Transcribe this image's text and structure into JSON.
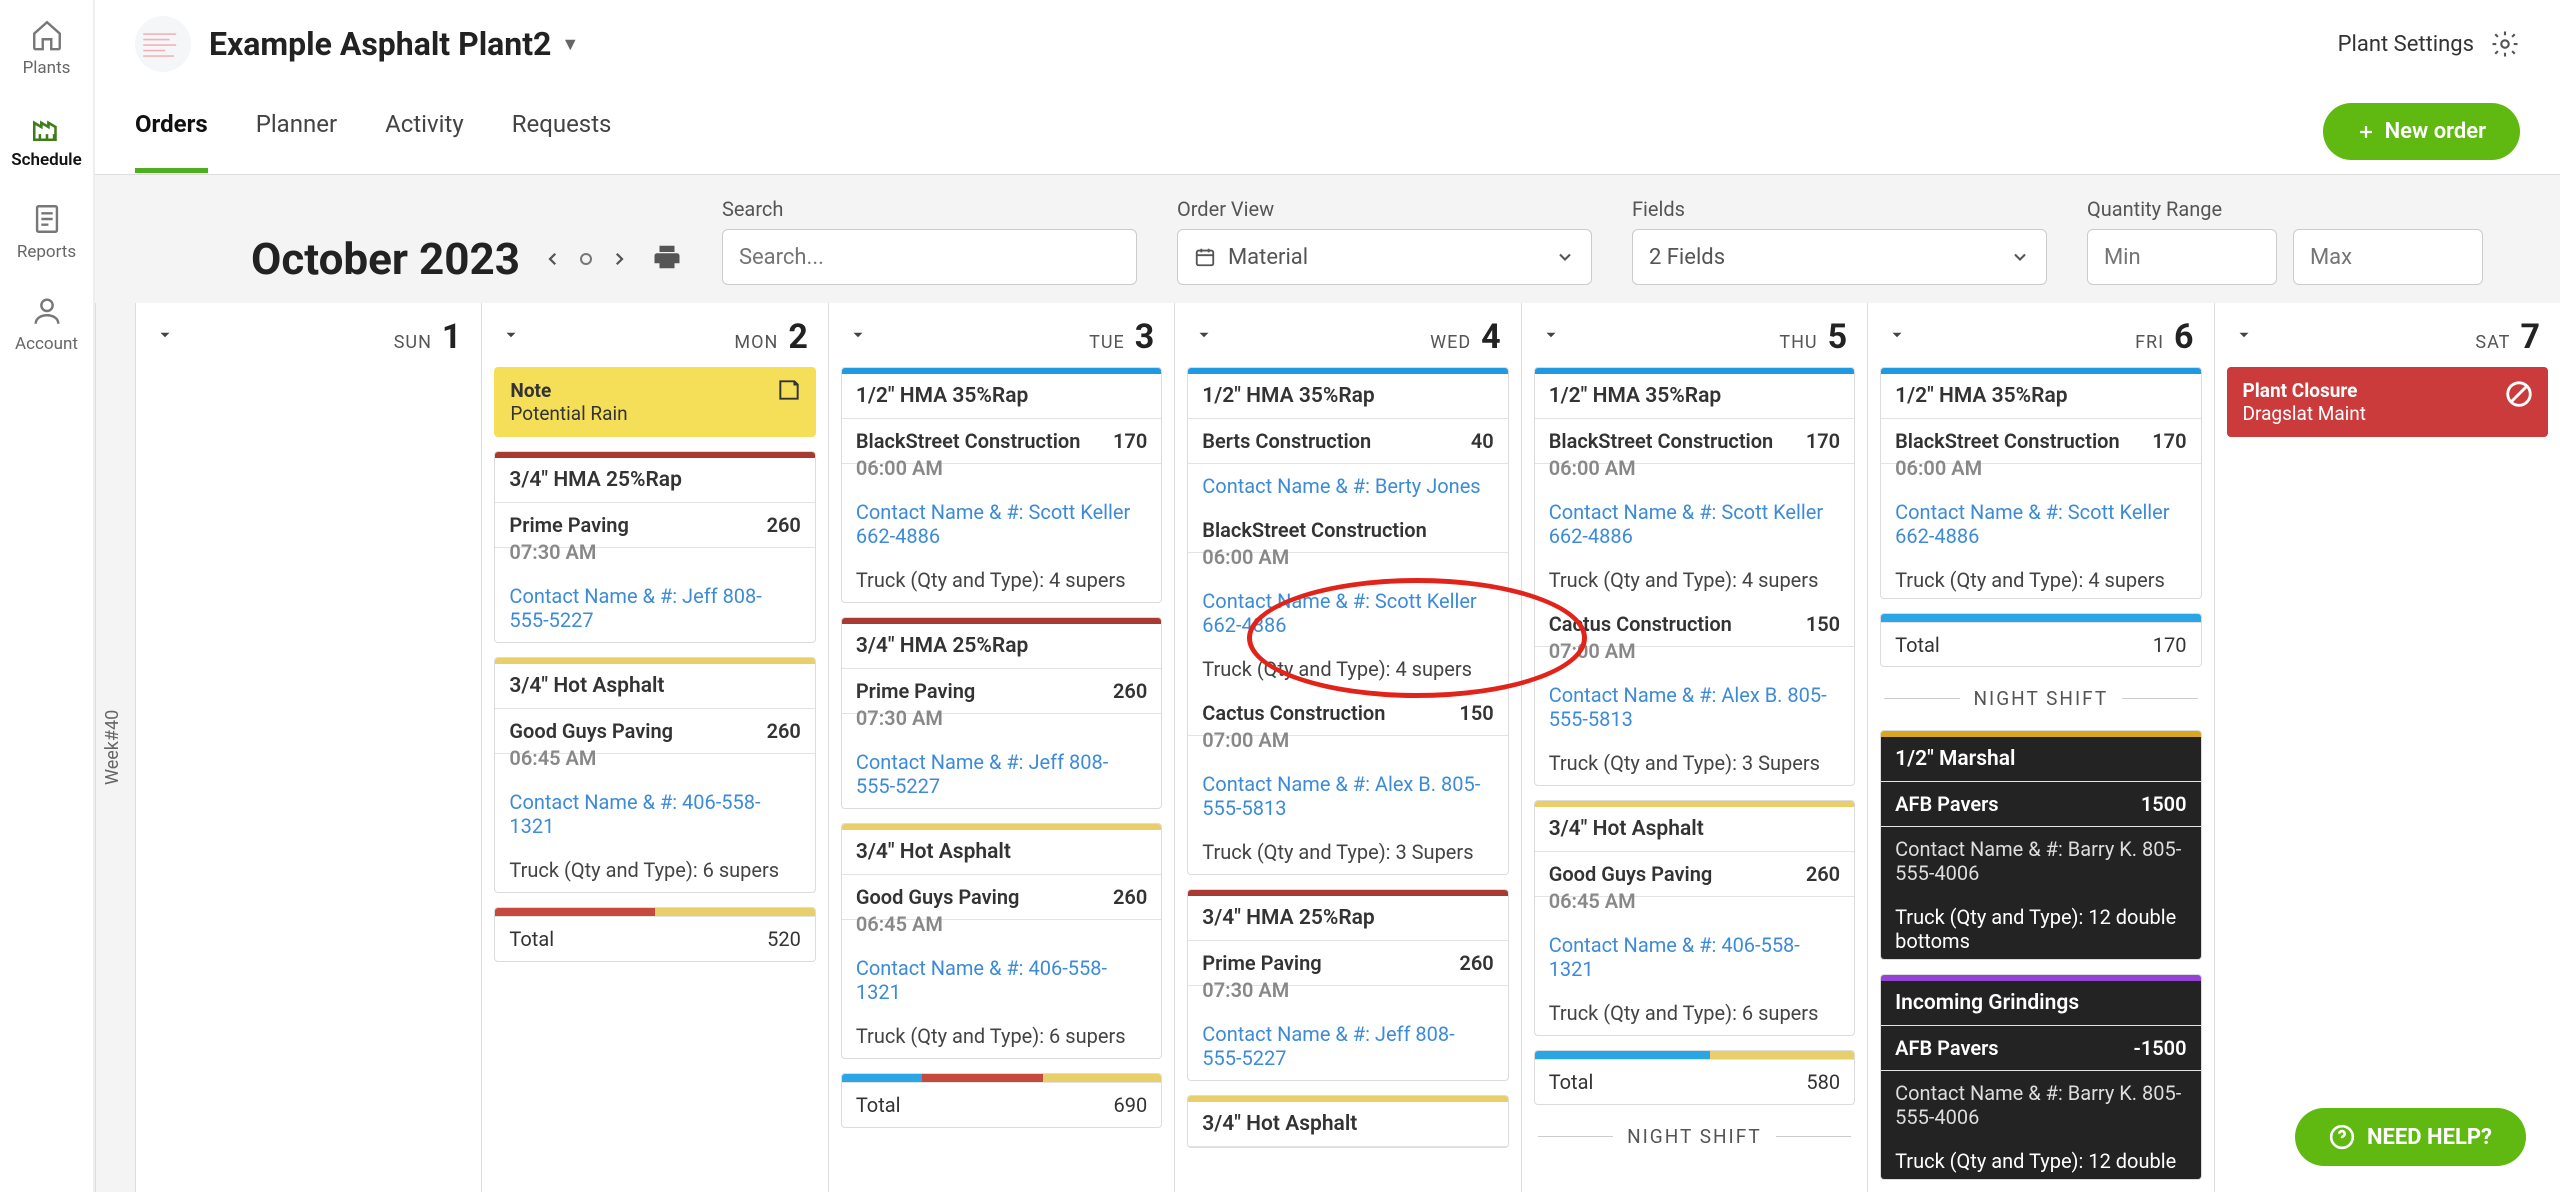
{
  "sidebar": {
    "items": [
      {
        "label": "Plants",
        "icon": "home"
      },
      {
        "label": "Schedule",
        "icon": "factory",
        "active": true
      },
      {
        "label": "Reports",
        "icon": "document"
      },
      {
        "label": "Account",
        "icon": "user"
      }
    ]
  },
  "header": {
    "plant_name": "Example Asphalt Plant2",
    "settings_label": "Plant Settings",
    "tabs": [
      "Orders",
      "Planner",
      "Activity",
      "Requests"
    ],
    "active_tab": 0,
    "new_order_label": "New order"
  },
  "controls": {
    "month_label": "October 2023",
    "search": {
      "label": "Search",
      "placeholder": "Search..."
    },
    "order_view": {
      "label": "Order View",
      "value": "Material"
    },
    "fields": {
      "label": "Fields",
      "value": "2 Fields"
    },
    "quantity_range": {
      "label": "Quantity Range",
      "min_placeholder": "Min",
      "max_placeholder": "Max"
    }
  },
  "week_tag": "Week#40",
  "colors": {
    "stripe_blue": "#1f99e0",
    "stripe_maroon": "#a83a33",
    "stripe_wheat": "#e8cf6a",
    "stripe_gold": "#d9a621",
    "stripe_purple": "#9443d4",
    "cat_dark_bg": "#232323",
    "progress_blue": "#2aa6e6",
    "progress_red": "#c54a3d",
    "progress_tan": "#e8cf6a"
  },
  "days": [
    {
      "dow": "SUN",
      "num": "1",
      "cards": []
    },
    {
      "dow": "MON",
      "num": "2",
      "note": {
        "title": "Note",
        "sub": "Potential Rain"
      },
      "cards": [
        {
          "stripe": "#a83a33",
          "cat": "3/4\" HMA 25%Rap",
          "entries": [
            {
              "name": "Prime Paving",
              "qty": "260",
              "time": "07:30 AM",
              "contact": "Contact Name & #: Jeff 808-555-5227"
            }
          ]
        },
        {
          "stripe": "#e8cf6a",
          "cat": "3/4\" Hot Asphalt",
          "entries": [
            {
              "name": "Good Guys Paving",
              "qty": "260",
              "time": "06:45 AM",
              "contact": "Contact Name & #: 406-558-1321",
              "truck": "Truck (Qty and Type): 6 supers"
            }
          ]
        },
        {
          "progress": [
            [
              "#c54a3d",
              50
            ],
            [
              "#e8cf6a",
              50
            ]
          ],
          "total": {
            "label": "Total",
            "value": "520"
          }
        }
      ]
    },
    {
      "dow": "TUE",
      "num": "3",
      "cards": [
        {
          "stripe": "#1f99e0",
          "cat": "1/2\" HMA 35%Rap",
          "entries": [
            {
              "name": "BlackStreet Construction",
              "qty": "170",
              "time": "06:00 AM",
              "contact": "Contact Name & #: Scott Keller 662-4886",
              "truck": "Truck (Qty and Type): 4 supers"
            }
          ]
        },
        {
          "stripe": "#a83a33",
          "cat": "3/4\" HMA 25%Rap",
          "entries": [
            {
              "name": "Prime Paving",
              "qty": "260",
              "time": "07:30 AM",
              "contact": "Contact Name & #: Jeff 808-555-5227"
            }
          ]
        },
        {
          "stripe": "#e8cf6a",
          "cat": "3/4\" Hot Asphalt",
          "entries": [
            {
              "name": "Good Guys Paving",
              "qty": "260",
              "time": "06:45 AM",
              "contact": "Contact Name & #: 406-558-1321",
              "truck": "Truck (Qty and Type): 6 supers"
            }
          ]
        },
        {
          "progress": [
            [
              "#2aa6e6",
              25
            ],
            [
              "#c54a3d",
              38
            ],
            [
              "#e8cf6a",
              37
            ]
          ],
          "total": {
            "label": "Total",
            "value": "690"
          }
        }
      ]
    },
    {
      "dow": "WED",
      "num": "4",
      "cards": [
        {
          "stripe": "#1f99e0",
          "cat": "1/2\" HMA 35%Rap",
          "entries": [
            {
              "name": "Berts Construction",
              "qty": "40",
              "contact": "Contact Name & #: Berty Jones"
            },
            {
              "name": "BlackStreet Construction",
              "qty": "",
              "time": "06:00 AM",
              "contact": "Contact Name & #: Scott Keller 662-4886",
              "truck": "Truck (Qty and Type): 4 supers"
            },
            {
              "name": "Cactus Construction",
              "qty": "150",
              "time": "07:00 AM",
              "contact": "Contact Name & #: Alex B. 805-555-5813",
              "truck": "Truck (Qty and Type): 3 Supers"
            }
          ]
        },
        {
          "stripe": "#a83a33",
          "cat": "3/4\" HMA 25%Rap",
          "entries": [
            {
              "name": "Prime Paving",
              "qty": "260",
              "time": "07:30 AM",
              "contact": "Contact Name & #: Jeff 808-555-5227"
            }
          ]
        },
        {
          "stripe": "#e8cf6a",
          "cat": "3/4\" Hot Asphalt",
          "entries": []
        }
      ]
    },
    {
      "dow": "THU",
      "num": "5",
      "cards": [
        {
          "stripe": "#1f99e0",
          "cat": "1/2\" HMA 35%Rap",
          "entries": [
            {
              "name": "BlackStreet Construction",
              "qty": "170",
              "time": "06:00 AM",
              "contact": "Contact Name & #: Scott Keller 662-4886",
              "truck": "Truck (Qty and Type): 4 supers"
            },
            {
              "name": "Cactus Construction",
              "qty": "150",
              "time": "07:00 AM",
              "contact": "Contact Name & #: Alex B. 805-555-5813",
              "truck": "Truck (Qty and Type): 3 Supers"
            }
          ]
        },
        {
          "stripe": "#e8cf6a",
          "cat": "3/4\" Hot Asphalt",
          "entries": [
            {
              "name": "Good Guys Paving",
              "qty": "260",
              "time": "06:45 AM",
              "contact": "Contact Name & #: 406-558-1321",
              "truck": "Truck (Qty and Type): 6 supers"
            }
          ]
        },
        {
          "progress": [
            [
              "#2aa6e6",
              55
            ],
            [
              "#e8cf6a",
              45
            ]
          ],
          "total": {
            "label": "Total",
            "value": "580"
          }
        },
        {
          "divider": "NIGHT SHIFT"
        }
      ]
    },
    {
      "dow": "FRI",
      "num": "6",
      "cards": [
        {
          "stripe": "#1f99e0",
          "cat": "1/2\" HMA 35%Rap",
          "entries": [
            {
              "name": "BlackStreet Construction",
              "qty": "170",
              "time": "06:00 AM",
              "contact": "Contact Name & #: Scott Keller 662-4886",
              "truck": "Truck (Qty and Type): 4 supers"
            }
          ]
        },
        {
          "progress": [
            [
              "#2aa6e6",
              100
            ]
          ],
          "total": {
            "label": "Total",
            "value": "170"
          }
        },
        {
          "divider": "NIGHT SHIFT"
        },
        {
          "stripe": "#d9a621",
          "catDark": true,
          "cat": "1/2\" Marshal",
          "entries": [
            {
              "name": "AFB Pavers",
              "qty": "1500",
              "contact": "Contact Name & #: Barry K. 805-555-4006",
              "truck": "Truck (Qty and Type): 12 double bottoms",
              "dark": true
            }
          ]
        },
        {
          "stripe": "#9443d4",
          "catDark": true,
          "cat": "Incoming Grindings",
          "entries": [
            {
              "name": "AFB Pavers",
              "qty": "-1500",
              "contact": "Contact Name & #: Barry K. 805-555-4006",
              "truck": "Truck (Qty and Type): 12 double",
              "dark": true
            }
          ]
        }
      ]
    },
    {
      "dow": "SAT",
      "num": "7",
      "closure": {
        "title": "Plant Closure",
        "sub": "Dragslat Maint"
      },
      "cards": []
    }
  ],
  "help_label": "NEED HELP?"
}
